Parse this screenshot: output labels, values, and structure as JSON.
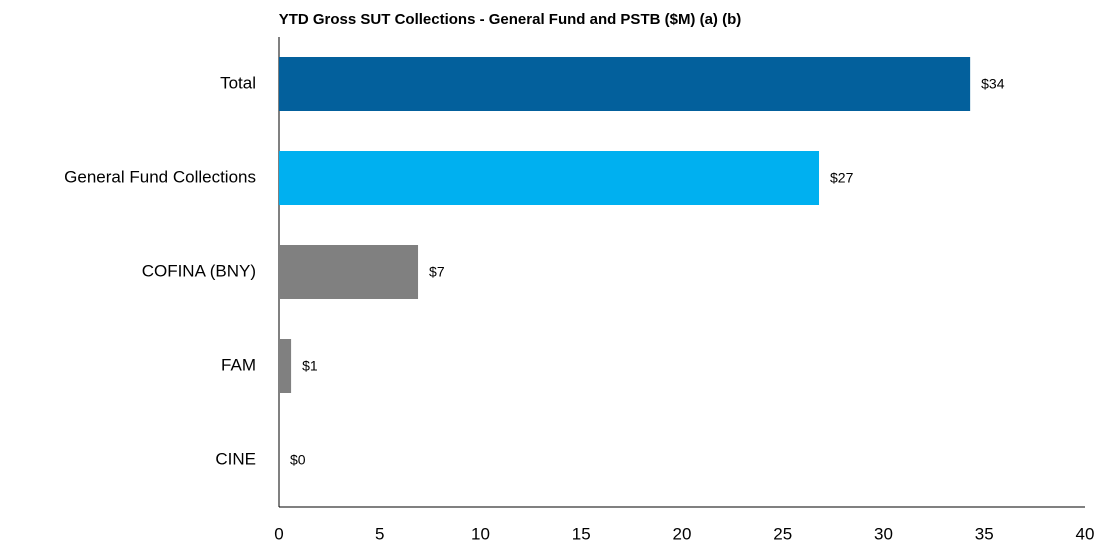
{
  "chart_data": {
    "type": "bar",
    "orientation": "horizontal",
    "title": "YTD Gross SUT Collections - General Fund and PSTB ($M) (a) (b)",
    "categories": [
      "Total",
      "General Fund Collections",
      "COFINA (BNY)",
      "FAM",
      "CINE"
    ],
    "values": [
      34.3,
      26.8,
      6.9,
      0.6,
      0
    ],
    "value_labels": [
      "$34",
      "$27",
      "$7",
      "$1",
      "$0"
    ],
    "colors": [
      "#03609c",
      "#00b0f0",
      "#808080",
      "#808080",
      "#808080"
    ],
    "xlim": [
      0,
      40
    ],
    "xticks": [
      0,
      5,
      10,
      15,
      20,
      25,
      30,
      35,
      40
    ],
    "grid": false
  }
}
